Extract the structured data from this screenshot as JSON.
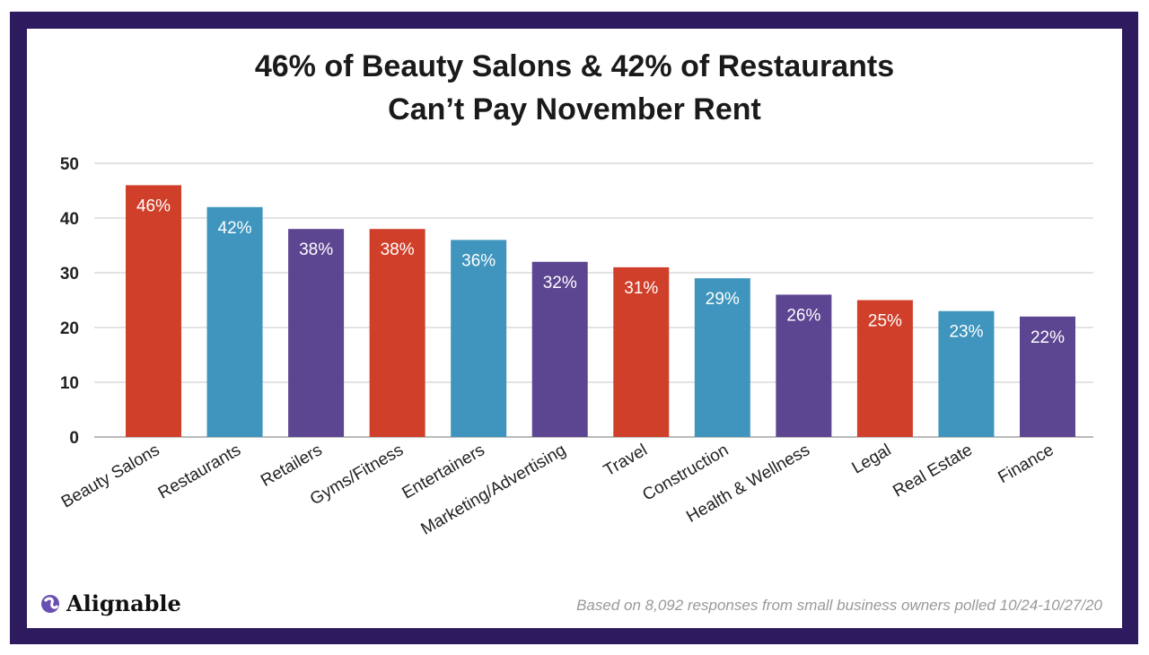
{
  "chart_data": {
    "type": "bar",
    "title_line1": "46% of Beauty Salons & 42% of Restaurants",
    "title_line2": "Can’t Pay November Rent",
    "categories": [
      "Beauty Salons",
      "Restaurants",
      "Retailers",
      "Gyms/Fitness",
      "Entertainers",
      "Marketing/Advertising",
      "Travel",
      "Construction",
      "Health & Wellness",
      "Legal",
      "Real Estate",
      "Finance"
    ],
    "values": [
      46,
      42,
      38,
      38,
      36,
      32,
      31,
      29,
      26,
      25,
      23,
      22
    ],
    "data_labels": [
      "46%",
      "42%",
      "38%",
      "38%",
      "36%",
      "32%",
      "31%",
      "29%",
      "26%",
      "25%",
      "23%",
      "22%"
    ],
    "bar_colors": [
      "#cf3f2a",
      "#3f95bd",
      "#5c4591",
      "#cf3f2a",
      "#3f95bd",
      "#5c4591",
      "#cf3f2a",
      "#3f95bd",
      "#5c4591",
      "#cf3f2a",
      "#3f95bd",
      "#5c4591"
    ],
    "ylim": [
      0,
      50
    ],
    "yticks": [
      0,
      10,
      20,
      30,
      40,
      50
    ],
    "grid": true,
    "xlabel": "",
    "ylabel": ""
  },
  "brand": "Alignable",
  "footnote": "Based on 8,092 responses from small business owners polled 10/24-10/27/20"
}
